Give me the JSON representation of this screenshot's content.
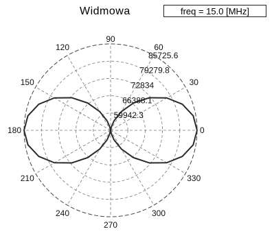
{
  "header": {
    "title": "Widmowa",
    "freq_label": "freq = 15.0 [MHz]"
  },
  "chart_data": {
    "type": "polar",
    "title": "Widmowa",
    "annotation": "freq = 15.0 [MHz]",
    "angle_unit": "degrees",
    "angle_ticks": [
      0,
      30,
      60,
      90,
      120,
      150,
      180,
      210,
      240,
      270,
      300,
      330
    ],
    "angle_tick_labels": [
      "0",
      "30",
      "60",
      "90",
      "120",
      "150",
      "180",
      "210",
      "240",
      "270",
      "300",
      "330"
    ],
    "radial_ticks": [
      59942.3,
      66388.1,
      72834,
      79279.8,
      85725.6
    ],
    "radial_tick_labels": [
      "59942.3",
      "66388.1",
      "72834",
      "79279.8",
      "85725.6"
    ],
    "r_range": [
      53496.5,
      85725.6
    ],
    "grid": true,
    "series": [
      {
        "pattern": "cos-squared",
        "r_min": 53496.5,
        "r_max": 85725.6,
        "theta_step_deg": 10,
        "color": "#2b2b2b"
      }
    ]
  }
}
